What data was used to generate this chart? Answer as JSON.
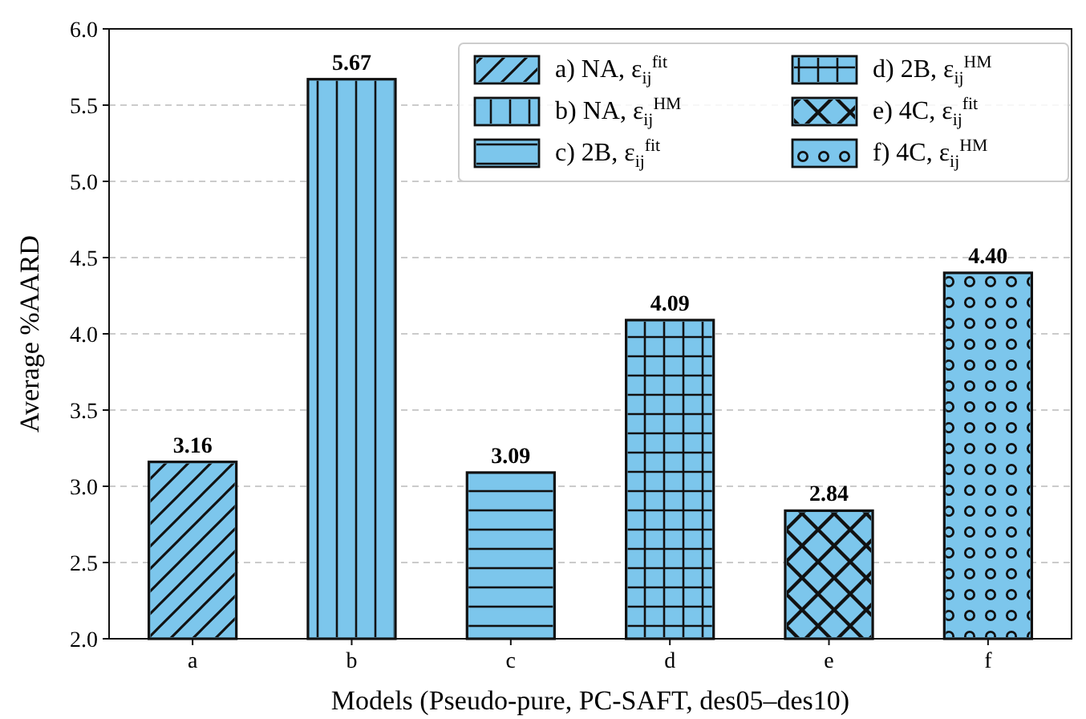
{
  "chart_data": {
    "type": "bar",
    "xlabel": "Models (Pseudo-pure, PC-SAFT, des05–des10)",
    "ylabel": "Average %AARD",
    "categories": [
      "a",
      "b",
      "c",
      "d",
      "e",
      "f"
    ],
    "series": [
      {
        "name": "a) NA, ε$_{ij}$$^{fit}$",
        "color": "#7cc6ec",
        "values": [
          3.16,
          null,
          null,
          null,
          null,
          null
        ]
      },
      {
        "name": "b) NA, ε$_{ij}$$^{HM}$",
        "color": "#7cc6ec",
        "values": [
          null,
          5.67,
          null,
          null,
          null,
          null
        ]
      },
      {
        "name": "c) 2B, ε$_{ij}$$^{fit}$",
        "color": "#7cc6ec",
        "values": [
          null,
          null,
          3.09,
          null,
          null,
          null
        ]
      },
      {
        "name": "d) 2B, ε$_{ij}$$^{HM}$",
        "color": "#7cc6ec",
        "values": [
          null,
          null,
          null,
          4.09,
          null,
          null
        ]
      },
      {
        "name": "e) 4C, ε$_{ij}$$^{fit}$",
        "color": "#7cc6ec",
        "values": [
          null,
          null,
          null,
          null,
          2.84,
          null
        ]
      },
      {
        "name": "f) 4C, ε$_{ij}$$^{HM}$",
        "color": "#7cc6ec",
        "values": [
          null,
          null,
          null,
          null,
          null,
          4.4
        ]
      }
    ],
    "value_labels": [
      "3.16",
      "5.67",
      "3.09",
      "4.09",
      "2.84",
      "4.40"
    ],
    "ylim": [
      2,
      6
    ],
    "yticks": [
      {
        "value": 2,
        "label": "2.0"
      },
      {
        "value": 2.5,
        "label": "2.5"
      },
      {
        "value": 3,
        "label": "3.0"
      },
      {
        "value": 3.5,
        "label": "3.5"
      },
      {
        "value": 4,
        "label": "4.0"
      },
      {
        "value": 4.5,
        "label": "4.5"
      },
      {
        "value": 5,
        "label": "5.0"
      },
      {
        "value": 5.5,
        "label": "5.5"
      },
      {
        "value": 6,
        "label": "6.0"
      }
    ],
    "grid": "y",
    "legend": "top right"
  }
}
